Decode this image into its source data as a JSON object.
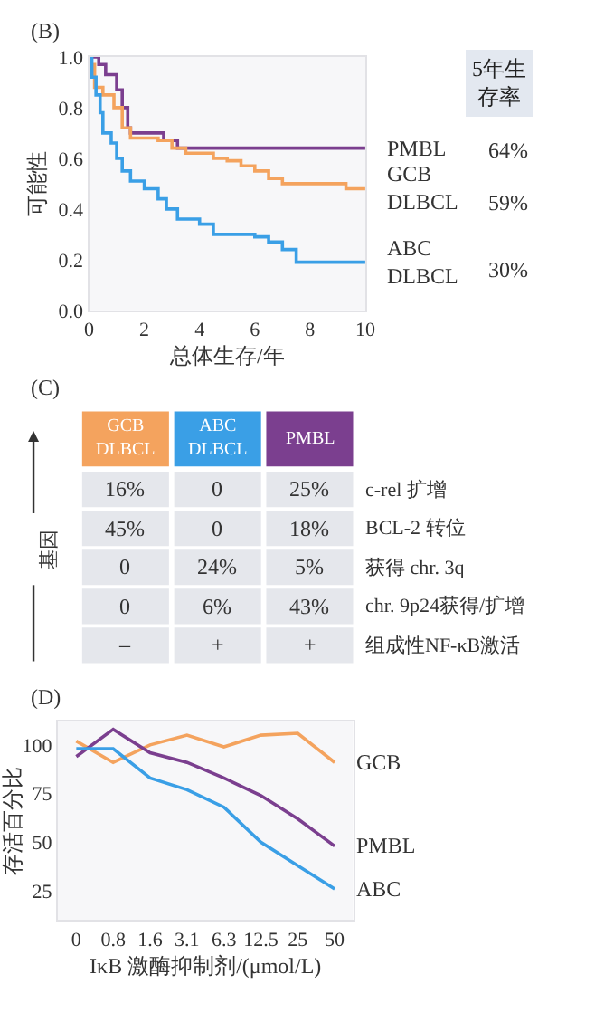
{
  "chart_data": [
    {
      "type": "step",
      "xlabel": "总体生存/年",
      "ylabel": "可能性",
      "xlim": [
        0,
        10
      ],
      "xticks": [
        0,
        2,
        4,
        6,
        8,
        10
      ],
      "ylim": [
        0,
        1
      ],
      "yticks": [
        {
          "value": 0,
          "label": "0.0"
        },
        {
          "value": 0.2,
          "label": "0.2"
        },
        {
          "value": 0.4,
          "label": "0.4"
        },
        {
          "value": 0.6,
          "label": "0.6"
        },
        {
          "value": 0.8,
          "label": "0.8"
        },
        {
          "value": 1,
          "label": "1.0"
        }
      ],
      "annotations": [
        "(B)",
        "5年生存率",
        "64%",
        "59%",
        "30%"
      ],
      "series": [
        {
          "name": "PMBL",
          "color": "#7b3f8f",
          "x": [
            0,
            0.35,
            0.6,
            1.0,
            1.2,
            1.4,
            1.5,
            2.7,
            3.2,
            10
          ],
          "values": [
            1.0,
            0.97,
            0.93,
            0.87,
            0.8,
            0.72,
            0.7,
            0.67,
            0.64,
            0.64
          ]
        },
        {
          "name": "GCB\nDLBCL",
          "color": "#f4a35e",
          "x": [
            0,
            0.2,
            0.5,
            0.9,
            1.2,
            1.5,
            2.5,
            3.0,
            3.5,
            4.5,
            5.0,
            5.5,
            6.0,
            6.5,
            7.0,
            9.3,
            10
          ],
          "values": [
            0.97,
            0.88,
            0.85,
            0.8,
            0.72,
            0.68,
            0.67,
            0.64,
            0.62,
            0.6,
            0.59,
            0.57,
            0.55,
            0.52,
            0.5,
            0.48,
            0.48
          ]
        },
        {
          "name": "ABC\nDLBCL",
          "color": "#3a9fe6",
          "x": [
            0,
            0.1,
            0.25,
            0.4,
            0.5,
            0.8,
            1.0,
            1.2,
            1.5,
            2.0,
            2.5,
            2.8,
            3.2,
            4.0,
            4.5,
            6.0,
            6.5,
            7.0,
            7.5,
            10
          ],
          "values": [
            1.0,
            0.92,
            0.85,
            0.78,
            0.7,
            0.66,
            0.6,
            0.55,
            0.51,
            0.48,
            0.44,
            0.4,
            0.36,
            0.34,
            0.3,
            0.29,
            0.27,
            0.24,
            0.19,
            0.19
          ]
        }
      ]
    },
    {
      "type": "other",
      "ylabel": "基因",
      "annotations": [
        "(C)"
      ],
      "categories": [
        "GCB\nDLBCL",
        "ABC\nDLBCL",
        "PMBL"
      ],
      "colors": [
        "#f4a35e",
        "#3a9fe6",
        "#7b3f8f"
      ],
      "y2_categories": [
        "c-rel 扩增",
        "BCL-2 转位",
        "获得 chr. 3q",
        "chr. 9p24获得/扩增",
        "组成性NF-κB激活"
      ],
      "cell_labels": [
        [
          "16%",
          "0",
          "25%"
        ],
        [
          "45%",
          "0",
          "18%"
        ],
        [
          "0",
          "24%",
          "5%"
        ],
        [
          "0",
          "6%",
          "43%"
        ],
        [
          "–",
          "+",
          "+"
        ]
      ]
    },
    {
      "type": "line",
      "xlabel": "IκB 激酶抑制剂/(μmol/L)",
      "ylabel": "存活百分比",
      "annotations": [
        "(D)"
      ],
      "categories": [
        "0",
        "0.8",
        "1.6",
        "3.1",
        "6.3",
        "12.5",
        "25",
        "50"
      ],
      "ylim": [
        10,
        112
      ],
      "yticks": [
        25,
        50,
        75,
        100
      ],
      "series": [
        {
          "name": "GCB",
          "color": "#f4a35e",
          "values": [
            102,
            91,
            100,
            105,
            99,
            105,
            106,
            91
          ]
        },
        {
          "name": "PMBL",
          "color": "#7b3f8f",
          "values": [
            94,
            108,
            96,
            91,
            83,
            74,
            62,
            48
          ]
        },
        {
          "name": "ABC",
          "color": "#3a9fe6",
          "values": [
            98,
            98,
            83,
            77,
            68,
            50,
            38,
            26
          ]
        }
      ]
    }
  ]
}
